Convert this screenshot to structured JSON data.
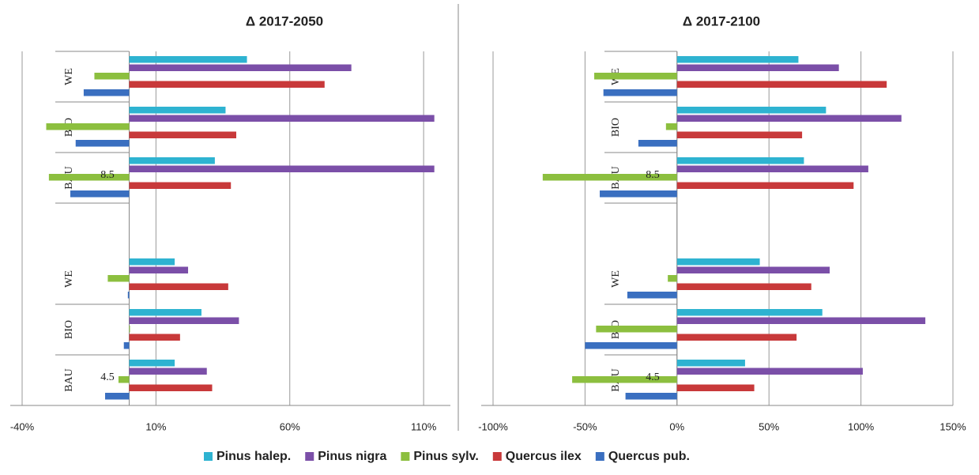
{
  "chart_data": [
    {
      "type": "hbar",
      "title": "Δ 2017-2050",
      "categories": [
        "WE",
        "BIO",
        "BAU",
        null,
        "WE",
        "BIO",
        "BAU"
      ],
      "annotations": [
        "8.5",
        "4.5"
      ],
      "xlim": [
        -40,
        120
      ],
      "xticks": [
        {
          "value": -40,
          "label": "-40%"
        },
        {
          "value": 10,
          "label": "10%"
        },
        {
          "value": 60,
          "label": "60%"
        },
        {
          "value": 110,
          "label": "110%"
        }
      ],
      "series": [
        {
          "values": [
            44,
            36,
            32,
            null,
            17,
            27,
            17
          ]
        },
        {
          "values": [
            83,
            114,
            114,
            null,
            22,
            41,
            29
          ]
        },
        {
          "values": [
            -13,
            -31,
            -30,
            null,
            -8,
            0,
            -4
          ]
        },
        {
          "values": [
            73,
            40,
            38,
            null,
            37,
            19,
            31
          ]
        },
        {
          "values": [
            -17,
            -20,
            -22,
            null,
            -0.5,
            -2,
            -9
          ]
        }
      ]
    },
    {
      "type": "hbar",
      "title": "Δ 2017-2100",
      "categories": [
        "WE",
        "BIO",
        "BAU",
        null,
        "WE",
        "BIO",
        "BAU"
      ],
      "annotations": [
        "8.5",
        "4.5"
      ],
      "xlim": [
        -100,
        150
      ],
      "xticks": [
        {
          "value": -100,
          "label": "-100%"
        },
        {
          "value": -50,
          "label": "-50%"
        },
        {
          "value": 0,
          "label": "0%"
        },
        {
          "value": 50,
          "label": "50%"
        },
        {
          "value": 100,
          "label": "100%"
        },
        {
          "value": 150,
          "label": "150%"
        }
      ],
      "series": [
        {
          "values": [
            66,
            81,
            69,
            null,
            45,
            79,
            37
          ]
        },
        {
          "values": [
            88,
            122,
            104,
            null,
            83,
            135,
            101
          ]
        },
        {
          "values": [
            -45,
            -6,
            -73,
            null,
            -5,
            -44,
            -57
          ]
        },
        {
          "values": [
            114,
            68,
            96,
            null,
            73,
            65,
            42
          ]
        },
        {
          "values": [
            -40,
            -21,
            -42,
            null,
            -27,
            -50,
            -28
          ]
        }
      ]
    }
  ],
  "legend": [
    {
      "name": "Pinus halep.",
      "color": "#2eb3d1"
    },
    {
      "name": "Pinus nigra",
      "color": "#7b4fa8"
    },
    {
      "name": "Pinus sylv.",
      "color": "#8cbf3f"
    },
    {
      "name": "Quercus ilex",
      "color": "#c8393a"
    },
    {
      "name": "Quercus pub.",
      "color": "#3a6fc0"
    }
  ]
}
